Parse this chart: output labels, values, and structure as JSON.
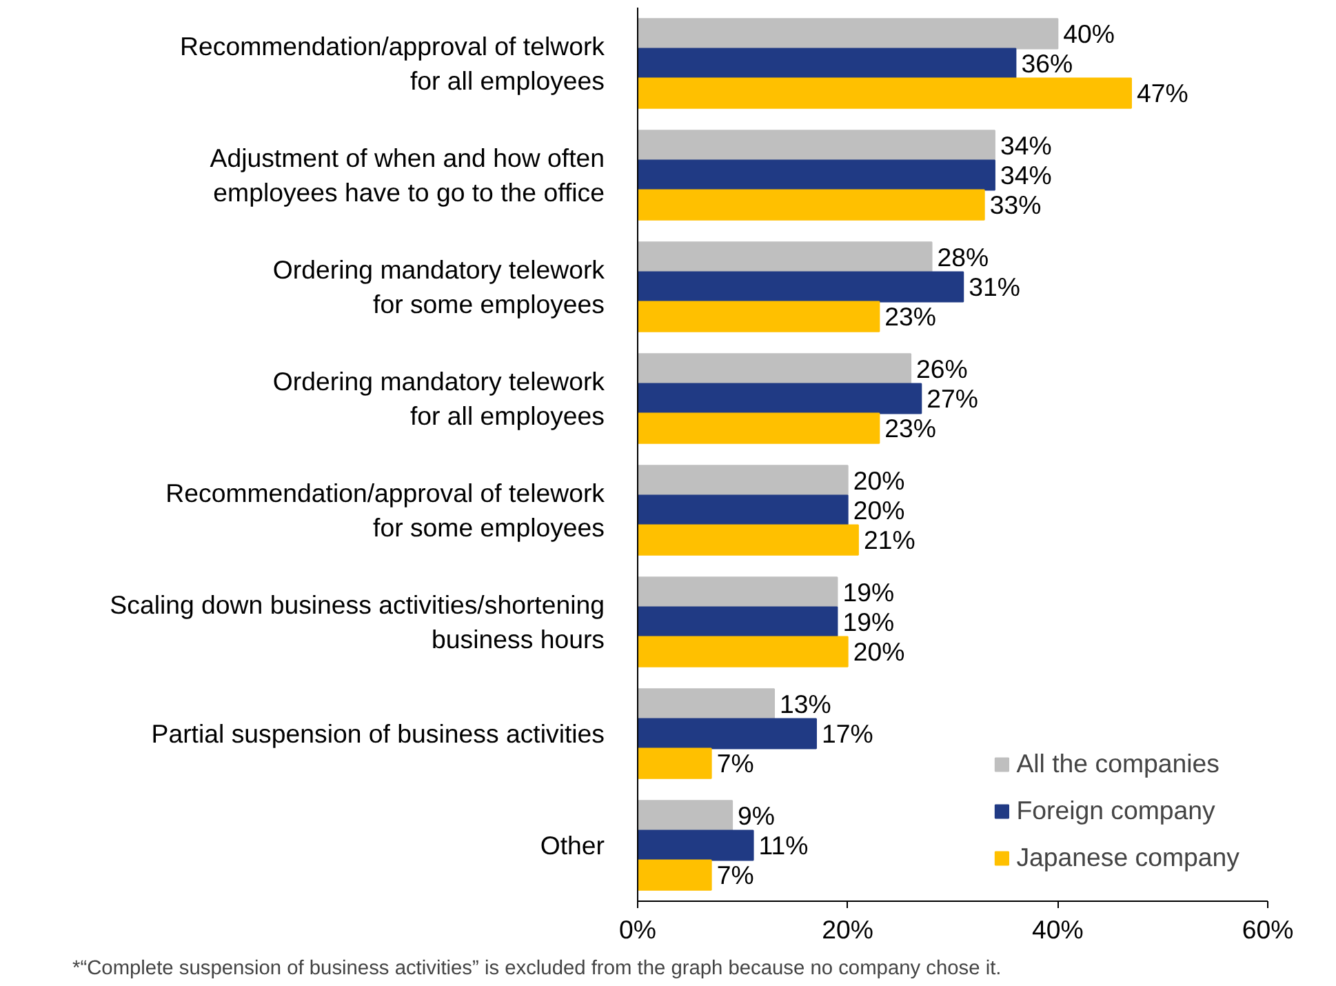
{
  "chart_data": {
    "type": "bar",
    "orientation": "horizontal",
    "categories": [
      "Recommendation/approval of telwork\nfor all employees",
      "Adjustment of when and how often\nemployees have to go to the office",
      "Ordering mandatory telework\nfor some employees",
      "Ordering mandatory telework\nfor all employees",
      "Recommendation/approval of telework\nfor some employees",
      "Scaling down business activities/shortening\nbusiness hours",
      "Partial suspension of business activities",
      "Other"
    ],
    "series": [
      {
        "name": "All the companies",
        "color": "#bfbfbf",
        "values": [
          40,
          34,
          28,
          26,
          20,
          19,
          13,
          9
        ],
        "value_labels": [
          "40%",
          "34%",
          "28%",
          "26%",
          "20%",
          "19%",
          "13%",
          "9%"
        ]
      },
      {
        "name": "Foreign company",
        "color": "#203a84",
        "values": [
          36,
          34,
          31,
          27,
          20,
          19,
          17,
          11
        ],
        "value_labels": [
          "36%",
          "34%",
          "31%",
          "27%",
          "20%",
          "19%",
          "17%",
          "11%"
        ]
      },
      {
        "name": "Japanese company",
        "color": "#ffc000",
        "values": [
          47,
          33,
          23,
          23,
          21,
          20,
          7,
          7
        ],
        "value_labels": [
          "47%",
          "33%",
          "23%",
          "23%",
          "21%",
          "20%",
          "7%",
          "7%"
        ]
      }
    ],
    "xlim": [
      0,
      60
    ],
    "xticks": [
      {
        "value": 0,
        "label": "0%"
      },
      {
        "value": 20,
        "label": "20%"
      },
      {
        "value": 40,
        "label": "40%"
      },
      {
        "value": 60,
        "label": "60%"
      }
    ],
    "grid": false,
    "legend": "bottom right",
    "annotations": [
      "*“Complete suspension of business activities” is excluded from the graph because no company chose it."
    ]
  }
}
